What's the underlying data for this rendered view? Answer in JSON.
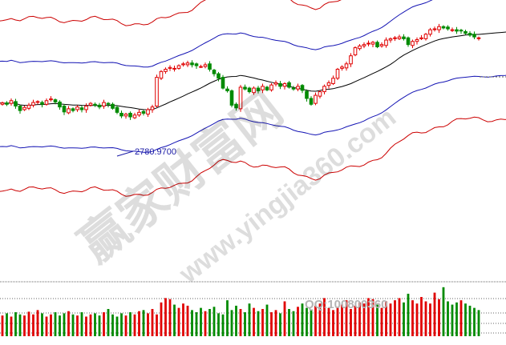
{
  "chart_data": {
    "type": "candlestick",
    "annotation": {
      "low_label": "2780.9700"
    },
    "watermark": {
      "chinese": "赢家财富网",
      "url": "www.yingjia360.com",
      "qq": "QQ:100800360"
    },
    "colors": {
      "up": "#e00000",
      "down": "#008a00",
      "outer_band": "#cc0000",
      "inner_band": "#1414b4",
      "mid_line": "#000000",
      "volume_grid": "#333333"
    },
    "price_range": [
      2545,
      3030
    ],
    "candle_closes": [
      2815,
      2812,
      2820,
      2808,
      2798,
      2805,
      2810,
      2816,
      2818,
      2812,
      2820,
      2824,
      2817,
      2806,
      2795,
      2802,
      2798,
      2806,
      2800,
      2808,
      2814,
      2810,
      2806,
      2816,
      2812,
      2803,
      2794,
      2786,
      2790,
      2784,
      2788,
      2794,
      2792,
      2800,
      2806,
      2872,
      2885,
      2890,
      2894,
      2892,
      2898,
      2902,
      2904,
      2900,
      2898,
      2896,
      2900,
      2890,
      2880,
      2870,
      2848,
      2842,
      2810,
      2804,
      2850,
      2846,
      2840,
      2848,
      2842,
      2852,
      2844,
      2855,
      2860,
      2852,
      2858,
      2850,
      2846,
      2852,
      2843,
      2825,
      2812,
      2832,
      2840,
      2852,
      2860,
      2870,
      2890,
      2895,
      2902,
      2920,
      2938,
      2942,
      2945,
      2948,
      2950,
      2940,
      2945,
      2955,
      2958,
      2960,
      2962,
      2958,
      2945,
      2952,
      2956,
      2960,
      2968,
      2978,
      2980,
      2985,
      2982,
      2980,
      2978,
      2975,
      2976,
      2970,
      2966,
      2962,
      2960
    ],
    "volume_range": [
      0,
      100
    ],
    "volumes": [
      38,
      42,
      36,
      44,
      40,
      38,
      45,
      40,
      48,
      42,
      36,
      40,
      44,
      38,
      42,
      46,
      40,
      38,
      44,
      36,
      40,
      42,
      38,
      44,
      50,
      40,
      36,
      42,
      38,
      44,
      40,
      46,
      48,
      42,
      50,
      40,
      62,
      70,
      68,
      58,
      52,
      60,
      56,
      48,
      44,
      52,
      46,
      50,
      54,
      42,
      40,
      66,
      48,
      56,
      50,
      44,
      60,
      52,
      46,
      50,
      58,
      44,
      48,
      42,
      64,
      50,
      46,
      54,
      60,
      52,
      48,
      56,
      60,
      70,
      52,
      48,
      54,
      58,
      66,
      50,
      56,
      62,
      60,
      70,
      68,
      58,
      52,
      64,
      60,
      66,
      70,
      62,
      78,
      66,
      60,
      72,
      64,
      60,
      80,
      68,
      90,
      64,
      58,
      62,
      66,
      60,
      56,
      52,
      48
    ]
  }
}
